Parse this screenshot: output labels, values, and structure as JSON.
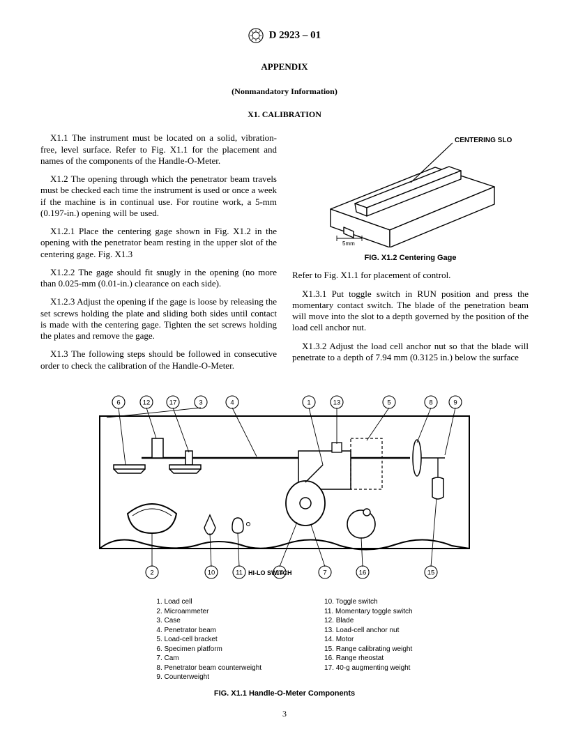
{
  "header": {
    "designation": "D 2923 – 01"
  },
  "titles": {
    "appendix": "APPENDIX",
    "nonmandatory": "(Nonmandatory Information)",
    "calibration": "X1.  CALIBRATION"
  },
  "paragraphs": {
    "x11": "X1.1   The instrument must be located on a solid, vibration-free, level surface. Refer to Fig. X1.1 for the placement and names of the components of the Handle-O-Meter.",
    "x12": "X1.2   The opening through which the penetrator beam travels must be checked each time the instrument is used or once a week if the machine is in continual use. For routine work, a 5-mm (0.197-in.) opening will be used.",
    "x121": "X1.2.1  Place the centering gage shown in Fig. X1.2 in the opening with the penetrator beam resting in the upper slot of the centering gage. Fig. X1.3",
    "x122": "X1.2.2  The gage should fit snugly in the opening (no more than 0.025-mm (0.01-in.) clearance on each side).",
    "x123": "X1.2.3  Adjust the opening if the gage is loose by releasing the set screws holding the plate and sliding both sides until contact is made with the centering gage. Tighten the set screws holding the plates and remove the gage.",
    "x13": "X1.3   The following steps should be followed in consecutive order to check the calibration of the Handle-O-Meter.",
    "x13r": "Refer to Fig. X1.1 for placement of control.",
    "x131": "X1.3.1  Put toggle switch in RUN position and press the momentary contact switch. The blade of the penetration beam will move into the slot to a depth governed by the position of the load cell anchor nut.",
    "x132": "X1.3.2  Adjust the load cell anchor nut so that the blade will penetrate to a depth of 7.94 mm (0.3125 in.) below the surface"
  },
  "fig2": {
    "callout": "CENTERING SLO",
    "mm": "5mm",
    "caption": "FIG. X1.2 Centering Gage",
    "colors": {
      "stroke": "#000000",
      "fill": "#ffffff"
    }
  },
  "fig1": {
    "callouts": [
      "6",
      "12",
      "17",
      "3",
      "4",
      "1",
      "13",
      "5",
      "8",
      "9",
      "2",
      "10",
      "11",
      "14",
      "7",
      "16",
      "15"
    ],
    "hilo": "HI-LO SWITCH",
    "legend_left": [
      "1.  Load cell",
      "2.  Microammeter",
      "3.  Case",
      "4.  Penetrator beam",
      "5.  Load-cell bracket",
      "6.  Specimen platform",
      "7.  Cam",
      "8.  Penetrator beam counterweight",
      "9.  Counterweight"
    ],
    "legend_right": [
      "10.  Toggle switch",
      "11.  Momentary toggle switch",
      "12.  Blade",
      "13.  Load-cell anchor nut",
      "14.  Motor",
      "15.  Range calibrating weight",
      "16.  Range rheostat",
      "17.  40-g augmenting weight"
    ],
    "caption": "FIG. X1.1 Handle-O-Meter Components",
    "colors": {
      "stroke": "#000000"
    }
  },
  "page": "3"
}
